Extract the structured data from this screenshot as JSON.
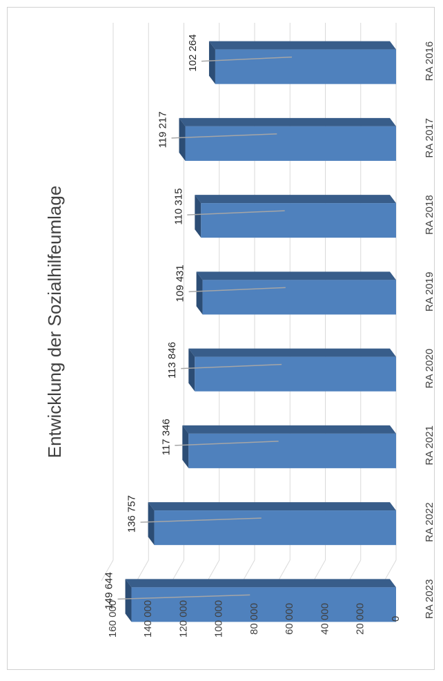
{
  "chart_data": {
    "type": "bar",
    "orientation": "rotated-90",
    "title": "Entwicklung der Sozialhilfeumlage",
    "categories": [
      "RA 2016",
      "RA 2017",
      "RA 2018",
      "RA 2019",
      "RA 2020",
      "RA 2021",
      "RA 2022",
      "RA 2023"
    ],
    "values": [
      102264,
      119217,
      110315,
      109431,
      113846,
      117346,
      136757,
      149644
    ],
    "value_labels": [
      "102 264",
      "119 217",
      "110 315",
      "109 431",
      "113 846",
      "117 346",
      "136 757",
      "149 644"
    ],
    "yticks": [
      "0",
      "20 000",
      "40 000",
      "60 000",
      "80 000",
      "100 000",
      "120 000",
      "140 000",
      "160 000"
    ],
    "ylim": [
      0,
      160000
    ],
    "grid": true,
    "legend": "none",
    "bar_3d": true,
    "colors": {
      "bar_front": "#4f81bd",
      "bar_top": "#385d8a",
      "bar_side": "#2c4d75",
      "gridline": "#d9d9d9",
      "leader_line": "#a6a6a6"
    }
  }
}
